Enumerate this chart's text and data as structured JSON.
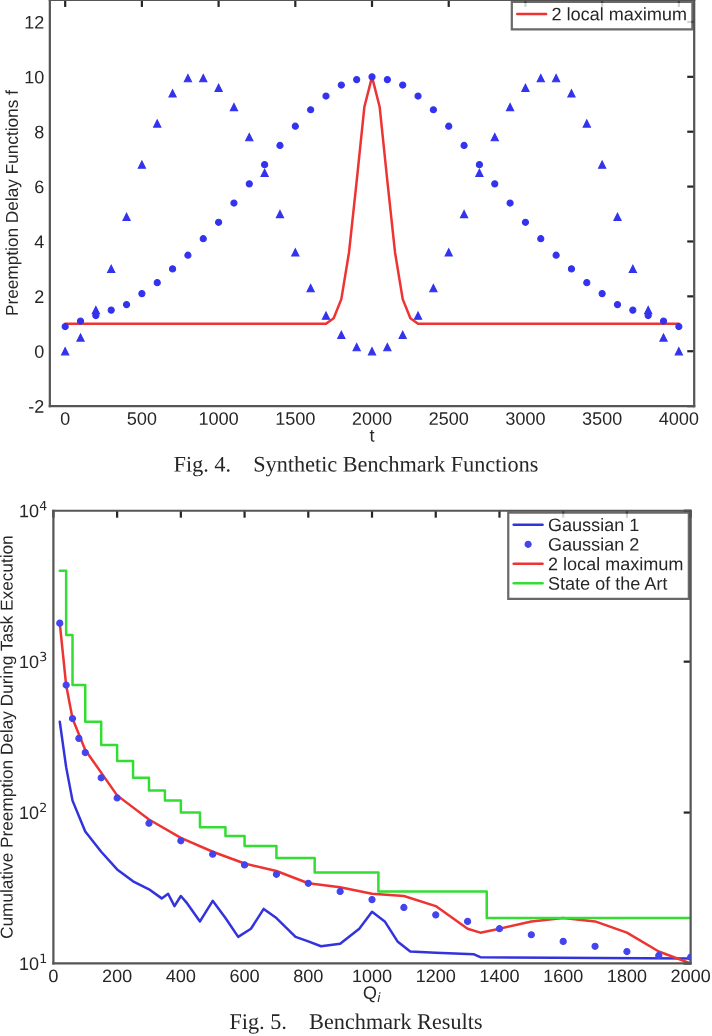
{
  "chart_data": [
    {
      "type": "line",
      "xlabel": "t",
      "ylabel": "Preemption Delay Functions f",
      "xlim": [
        -100,
        4100
      ],
      "ylim": [
        -2,
        12.8
      ],
      "xticks": [
        0,
        500,
        1000,
        1500,
        2000,
        2500,
        3000,
        3500,
        4000
      ],
      "yticks": [
        -2,
        0,
        2,
        4,
        6,
        8,
        10,
        12
      ],
      "legend": "top right",
      "annotations": [
        "Fig. 4.    Synthetic Benchmark Functions"
      ],
      "series": [
        {
          "type": "scatter",
          "marker": "circle",
          "color": "#3333ee",
          "x": [
            0,
            100,
            200,
            300,
            400,
            500,
            600,
            700,
            800,
            900,
            1000,
            1100,
            1200,
            1300,
            1400,
            1500,
            1600,
            1700,
            1800,
            1900,
            2000,
            2100,
            2200,
            2300,
            2400,
            2500,
            2600,
            2700,
            2800,
            2900,
            3000,
            3100,
            3200,
            3300,
            3400,
            3500,
            3600,
            3700,
            3800,
            3900,
            4000
          ],
          "values": [
            0.9,
            1.1,
            1.3,
            1.5,
            1.7,
            2.1,
            2.5,
            3.0,
            3.5,
            4.1,
            4.7,
            5.4,
            6.1,
            6.8,
            7.5,
            8.2,
            8.8,
            9.3,
            9.7,
            9.9,
            10,
            9.9,
            9.7,
            9.3,
            8.8,
            8.2,
            7.5,
            6.8,
            6.1,
            5.4,
            4.7,
            4.1,
            3.5,
            3.0,
            2.5,
            2.1,
            1.7,
            1.5,
            1.3,
            1.1,
            0.9
          ]
        },
        {
          "type": "scatter",
          "marker": "triangle",
          "color": "#3333ee",
          "x": [
            0,
            100,
            200,
            300,
            400,
            500,
            600,
            700,
            800,
            900,
            1000,
            1100,
            1200,
            1300,
            1400,
            1500,
            1600,
            1700,
            1800,
            1900,
            2000,
            2100,
            2200,
            2300,
            2400,
            2500,
            2600,
            2700,
            2800,
            2900,
            3000,
            3100,
            3200,
            3300,
            3400,
            3500,
            3600,
            3700,
            3800,
            3900,
            4000
          ],
          "values": [
            0,
            0.5,
            1.5,
            3.0,
            4.9,
            6.8,
            8.3,
            9.4,
            9.95,
            9.95,
            9.6,
            8.9,
            7.8,
            6.5,
            5.0,
            3.6,
            2.3,
            1.3,
            0.6,
            0.15,
            0,
            0.15,
            0.6,
            1.3,
            2.3,
            3.6,
            5.0,
            6.5,
            7.8,
            8.9,
            9.6,
            9.95,
            9.95,
            9.4,
            8.3,
            6.8,
            4.9,
            3.0,
            1.5,
            0.5,
            0
          ]
        },
        {
          "name": "2 local maximum",
          "color": "#ee3333",
          "x": [
            0,
            1700,
            1750,
            1800,
            1850,
            1900,
            1950,
            2000,
            2050,
            2100,
            2150,
            2200,
            2250,
            2300,
            4000
          ],
          "values": [
            1,
            1,
            1.2,
            1.9,
            3.6,
            6.2,
            8.9,
            10,
            8.9,
            6.2,
            3.6,
            1.9,
            1.2,
            1,
            1
          ]
        }
      ]
    },
    {
      "type": "line",
      "xlabel": "Q$_{i}$",
      "ylabel": "Cumulative Preemption Delay During Task Execution",
      "log": true,
      "xlim": [
        0,
        2000
      ],
      "ylim": [
        10,
        10000
      ],
      "xticks": [
        0,
        200,
        400,
        600,
        800,
        1000,
        1200,
        1400,
        1600,
        1800,
        2000
      ],
      "yticks": [
        {
          "value": 10,
          "label": "10$^{1}$"
        },
        {
          "value": 100,
          "label": "10$^{2}$"
        },
        {
          "value": 1000,
          "label": "10$^{3}$"
        },
        {
          "value": 10000,
          "label": "10$^{4}$"
        }
      ],
      "legend": "top right",
      "annotations": [
        "Fig. 5.    Benchmark Results"
      ],
      "series": [
        {
          "name": "Gaussian 1",
          "color": "#3333dd",
          "x": [
            20,
            40,
            60,
            100,
            150,
            200,
            250,
            300,
            340,
            360,
            380,
            400,
            420,
            460,
            500,
            540,
            580,
            620,
            660,
            700,
            760,
            800,
            840,
            900,
            960,
            1000,
            1040,
            1080,
            1120,
            1200,
            1320,
            1340,
            2000
          ],
          "values": [
            400,
            200,
            120,
            75,
            55,
            42,
            35,
            31,
            27,
            29,
            24,
            28,
            25,
            19,
            26,
            20,
            15,
            17,
            23,
            20,
            15,
            14,
            13,
            13.5,
            17,
            22,
            19,
            14,
            12,
            11.8,
            11.5,
            11,
            10.8
          ]
        },
        {
          "type": "scatter",
          "name": "Gaussian 2",
          "marker": "circle",
          "color": "#4444ee",
          "x": [
            20,
            40,
            60,
            80,
            100,
            150,
            200,
            300,
            400,
            500,
            600,
            700,
            800,
            900,
            1000,
            1100,
            1200,
            1300,
            1400,
            1500,
            1600,
            1700,
            1800,
            1900,
            2000
          ],
          "values": [
            1800,
            700,
            420,
            310,
            250,
            170,
            125,
            85,
            65,
            53,
            45,
            39,
            34,
            30,
            26.5,
            23.5,
            21,
            19,
            17,
            15.5,
            14,
            13,
            12,
            11.3,
            11
          ]
        },
        {
          "name": "2 local maximum",
          "color": "#ee3333",
          "x": [
            20,
            40,
            60,
            100,
            200,
            300,
            400,
            500,
            600,
            700,
            800,
            900,
            1000,
            1100,
            1200,
            1300,
            1340,
            1400,
            1500,
            1600,
            1700,
            1800,
            1900,
            2000
          ],
          "values": [
            1800,
            700,
            420,
            260,
            130,
            90,
            68,
            55,
            46,
            41,
            34,
            32,
            29,
            28,
            24,
            17,
            16,
            17,
            19,
            20,
            19,
            16,
            12,
            10
          ]
        },
        {
          "type": "step",
          "name": "State of the Art",
          "color": "#33dd33",
          "x": [
            20,
            40,
            60,
            100,
            150,
            200,
            250,
            300,
            350,
            400,
            460,
            540,
            600,
            700,
            820,
            1020,
            1360,
            2000
          ],
          "values": [
            4000,
            1500,
            700,
            400,
            280,
            220,
            170,
            140,
            120,
            100,
            80,
            70,
            60,
            50,
            40,
            30,
            20,
            20
          ]
        }
      ]
    }
  ]
}
